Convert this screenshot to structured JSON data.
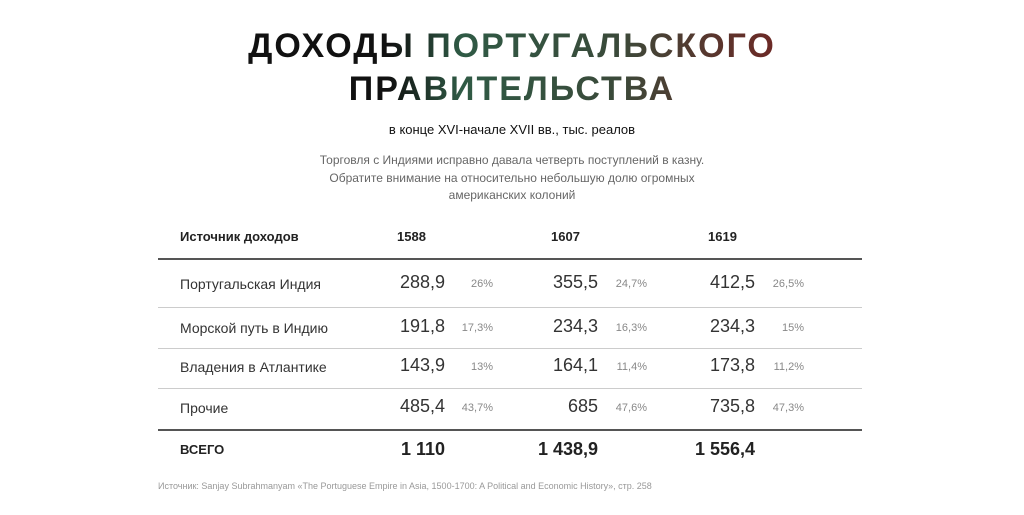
{
  "header": {
    "title_lines": [
      "ДОХОДЫ ПОРТУГАЛЬСКОГО",
      "ПРАВИТЕЛЬСТВА"
    ],
    "subtitle": "в конце XVI-начале XVII вв., тыс. реалов",
    "description_lines": [
      "Торговля с Индиями исправно давала четверть поступлений в казну.",
      "Обратите внимание на относительно небольшую долю огромных",
      "американских колоний"
    ]
  },
  "table": {
    "columns": [
      "Источник доходов",
      "1588",
      "1607",
      "1619"
    ],
    "rows": [
      {
        "name": "Португальская Индия",
        "cells": [
          [
            "288,9",
            "26%"
          ],
          [
            "355,5",
            "24,7%"
          ],
          [
            "412,5",
            "26,5%"
          ]
        ]
      },
      {
        "name": "Морской путь в Индию",
        "cells": [
          [
            "191,8",
            "17,3%"
          ],
          [
            "234,3",
            "16,3%"
          ],
          [
            "234,3",
            "15%"
          ]
        ]
      },
      {
        "name": "Владения в Атлантике",
        "cells": [
          [
            "143,9",
            "13%"
          ],
          [
            "164,1",
            "11,4%"
          ],
          [
            "173,8",
            "11,2%"
          ]
        ]
      },
      {
        "name": "Прочие",
        "cells": [
          [
            "485,4",
            "43,7%"
          ],
          [
            "685",
            "47,6%"
          ],
          [
            "735,8",
            "47,3%"
          ]
        ]
      }
    ],
    "total": {
      "name": "ВСЕГО",
      "cells": [
        "1 110",
        "1 438,9",
        "1 556,4"
      ]
    }
  },
  "footer": {
    "source": "Источник: Sanjay Subrahmanyam «The Portuguese Empire in Asia, 1500-1700: A Political and Economic History», стр. 258"
  }
}
